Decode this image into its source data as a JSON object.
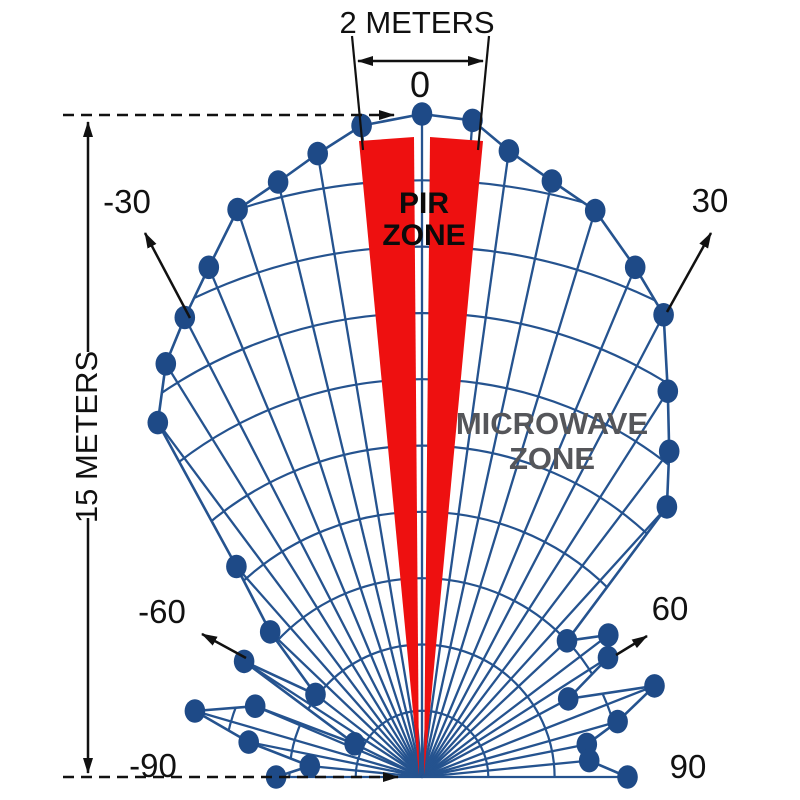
{
  "colors": {
    "grid_blue": "#25538F",
    "dot_blue": "#1E4A87",
    "pir_red": "#EE1010",
    "annotation_black": "#111111",
    "microwave_text_gray": "#55565A",
    "background": "#FFFFFF"
  },
  "labels": {
    "top_dimension": "2 METERS",
    "zero": "0",
    "left_dimension": "15 METERS",
    "pir_line1": "PIR",
    "pir_line2": "ZONE",
    "microwave_line1": "MICROWAVE",
    "microwave_line2": "ZONE",
    "angle_neg30": "-30",
    "angle_pos30": "30",
    "angle_neg60": "-60",
    "angle_pos60": "60",
    "angle_neg90": "-90",
    "angle_pos90": "90"
  },
  "chart_data": {
    "type": "polar-coverage-diagram",
    "title": "Dual-technology sensor coverage pattern (PIR zone + microwave zone)",
    "max_range_m": 15,
    "pir_zone_width_m": 2,
    "ring_spacing_m": 1.5,
    "angle_ticks_deg": [
      -90,
      -60,
      -30,
      0,
      30,
      60,
      90
    ],
    "pattern_points": [
      [
        -90,
        3.3
      ],
      [
        -84.4,
        2.55
      ],
      [
        -78.6,
        4.0
      ],
      [
        -73.8,
        5.35
      ],
      [
        -67.0,
        4.1
      ],
      [
        -63.8,
        1.7
      ],
      [
        -57.0,
        4.8
      ],
      [
        -52.2,
        3.05
      ],
      [
        -46.3,
        4.75
      ],
      [
        -41.4,
        6.35
      ],
      [
        -36.7,
        10.0
      ],
      [
        -31.8,
        11.0
      ],
      [
        -27.3,
        11.7
      ],
      [
        -22.7,
        12.5
      ],
      [
        -18.0,
        13.5
      ],
      [
        -13.6,
        13.85
      ],
      [
        -9.5,
        14.3
      ],
      [
        -5.3,
        14.8
      ],
      [
        0,
        15.0
      ],
      [
        4.4,
        14.9
      ],
      [
        7.9,
        14.3
      ],
      [
        12.3,
        13.8
      ],
      [
        17.0,
        13.4
      ],
      [
        22.7,
        12.5
      ],
      [
        27.6,
        11.8
      ],
      [
        32.5,
        10.35
      ],
      [
        37.2,
        9.25
      ],
      [
        42.2,
        8.25
      ],
      [
        46.8,
        4.5
      ],
      [
        52.7,
        5.3
      ],
      [
        57.3,
        5.0
      ],
      [
        61.9,
        3.75
      ],
      [
        68.6,
        5.65
      ],
      [
        74.2,
        4.6
      ],
      [
        78.8,
        3.8
      ],
      [
        84.4,
        3.8
      ],
      [
        90,
        4.65
      ]
    ]
  }
}
